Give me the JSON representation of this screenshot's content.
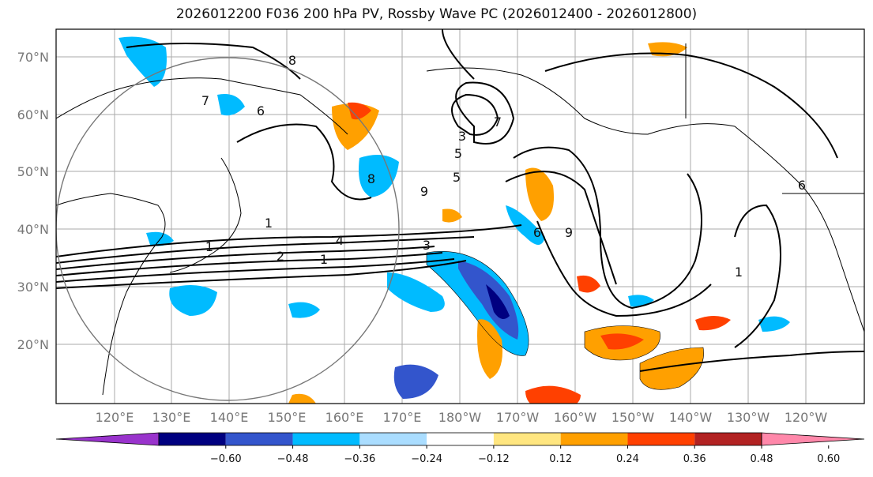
{
  "title": "2026012200 F036 200 hPa PV, Rossby Wave PC (2026012400 - 2026012800)",
  "lat_labels": [
    "70°N",
    "60°N",
    "50°N",
    "40°N",
    "30°N",
    "20°N"
  ],
  "lon_labels": [
    "120°E",
    "130°E",
    "140°E",
    "150°E",
    "160°E",
    "170°E",
    "180°W",
    "170°W",
    "160°W",
    "150°W",
    "140°W",
    "130°W",
    "120°W"
  ],
  "colorbar": {
    "colors": [
      "#9933cc",
      "#000080",
      "#3355cc",
      "#00bbff",
      "#aaddff",
      "#ffffff",
      "#ffe680",
      "#ffa000",
      "#ff4000",
      "#b22222",
      "#ff88aa"
    ],
    "tick_labels": [
      "−0.60",
      "−0.48",
      "−0.36",
      "−0.24",
      "−0.12",
      "0.12",
      "0.24",
      "0.36",
      "0.48",
      "0.60"
    ]
  },
  "contour_labels": [
    "8",
    "7",
    "6",
    "5",
    "4",
    "3",
    "2",
    "1",
    "1",
    "1",
    "9",
    "8",
    "3",
    "5",
    "6",
    "7",
    "1",
    "9",
    "6"
  ]
}
